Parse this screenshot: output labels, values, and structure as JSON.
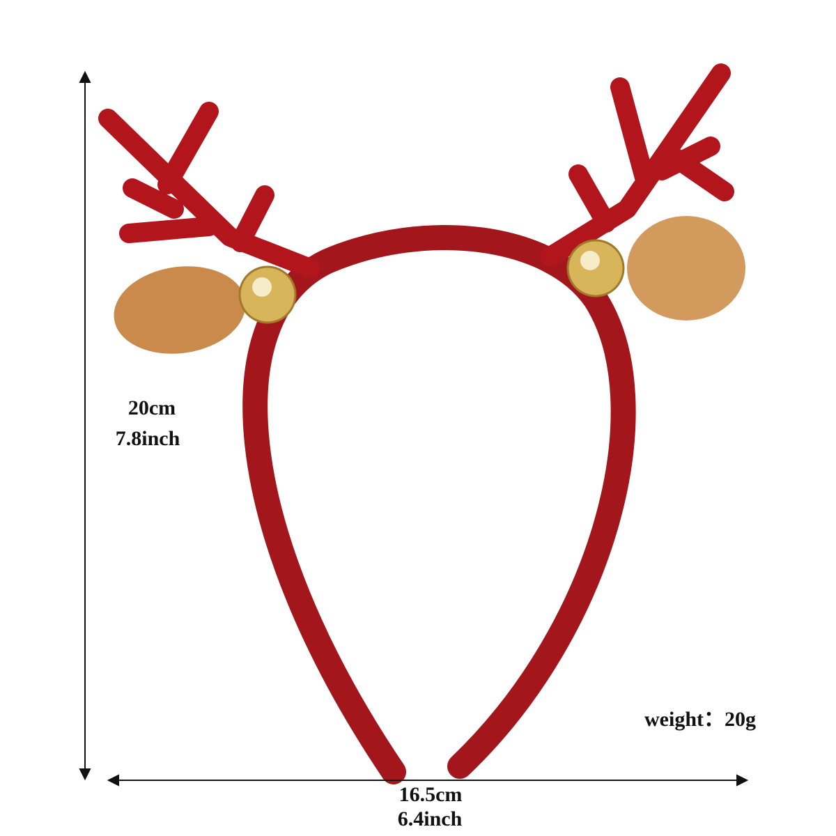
{
  "dimensions": {
    "height": {
      "metric": "20cm",
      "imperial": "7.8inch"
    },
    "width": {
      "metric": "16.5cm",
      "imperial": "6.4inch"
    }
  },
  "weight": "weight：20g"
}
